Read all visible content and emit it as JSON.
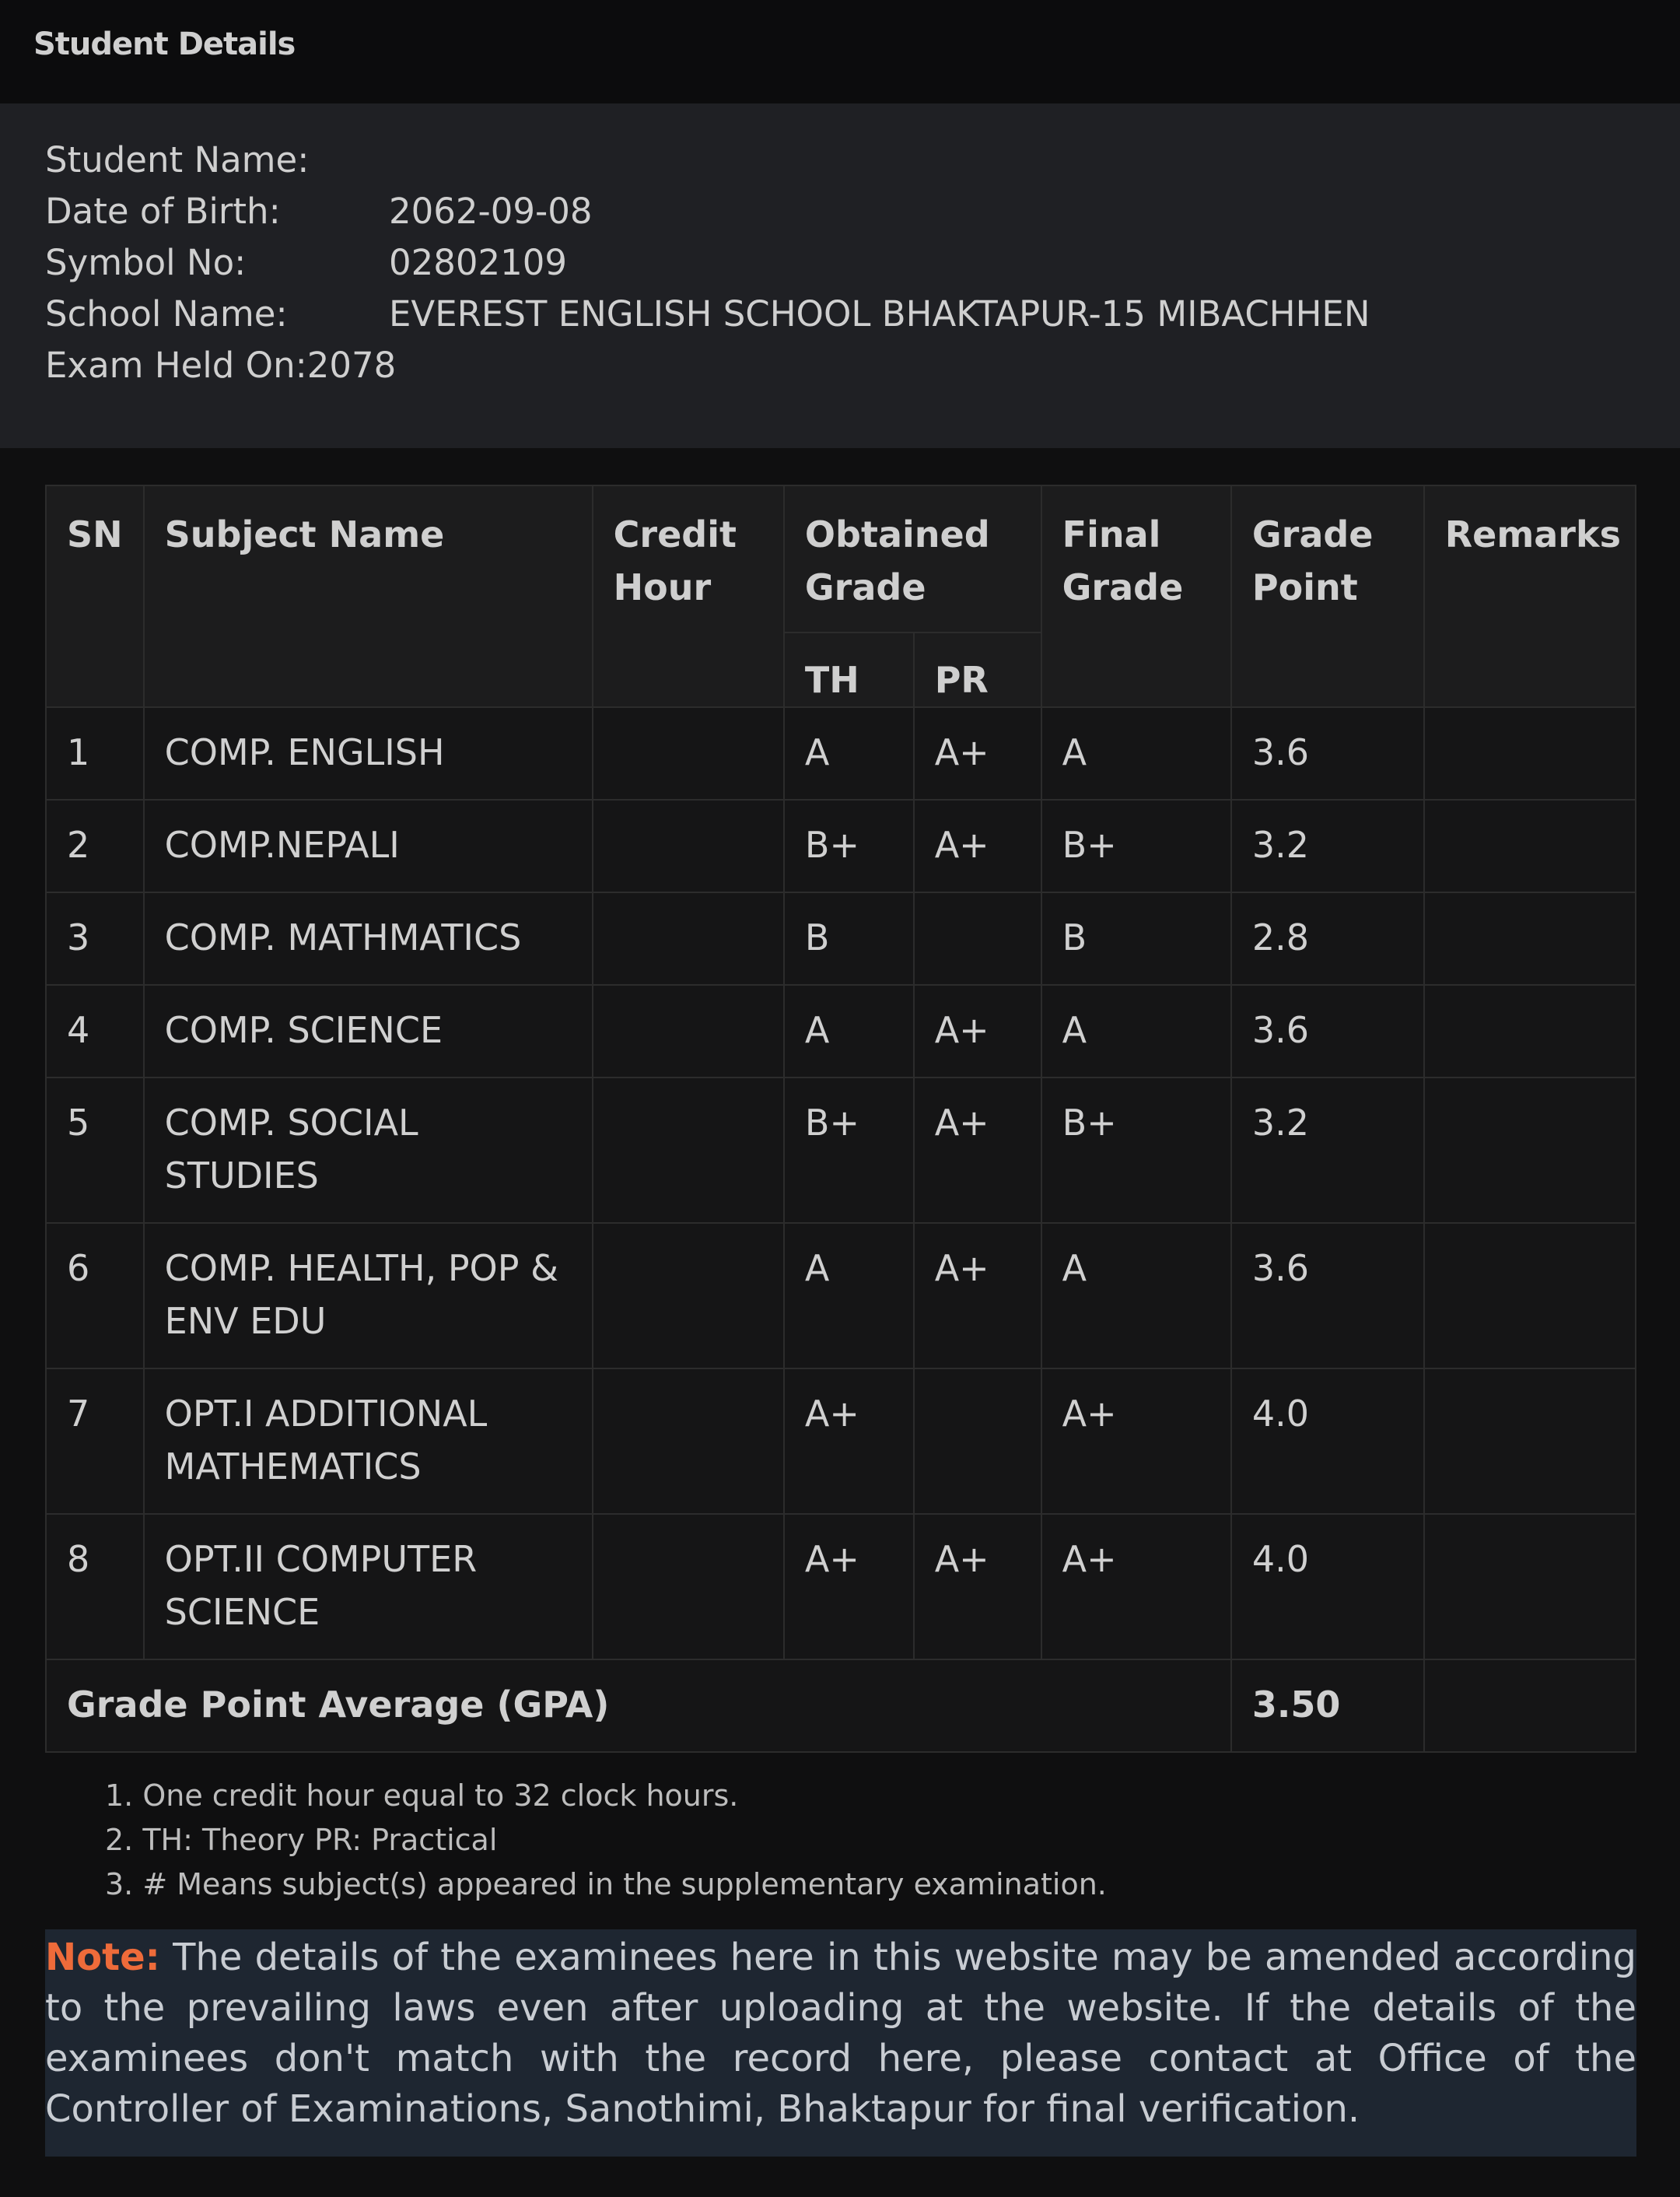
{
  "header": {
    "title": "Student Details"
  },
  "details": [
    {
      "label": "Student Name:",
      "value": ""
    },
    {
      "label": "Date of Birth:",
      "value": "2062-09-08"
    },
    {
      "label": "Symbol No:",
      "value": "02802109"
    },
    {
      "label": "School Name:",
      "value": "EVEREST ENGLISH SCHOOL BHAKTAPUR-15 MIBACHHEN"
    },
    {
      "label": "Exam Held On:2078",
      "value": ""
    }
  ],
  "table": {
    "headers": {
      "sn": "SN",
      "subject": "Subject Name",
      "credit": "Credit Hour",
      "obtained": "Obtained Grade",
      "th": "TH",
      "pr": "PR",
      "final": "Final Grade",
      "gp": "Grade Point",
      "remarks": "Remarks"
    },
    "rows": [
      {
        "sn": "1",
        "subject": "COMP. ENGLISH",
        "credit": "",
        "th": "A",
        "pr": "A+",
        "final": "A",
        "gp": "3.6",
        "remarks": ""
      },
      {
        "sn": "2",
        "subject": "COMP.NEPALI",
        "credit": "",
        "th": "B+",
        "pr": "A+",
        "final": "B+",
        "gp": "3.2",
        "remarks": ""
      },
      {
        "sn": "3",
        "subject": "COMP. MATHMATICS",
        "credit": "",
        "th": "B",
        "pr": "",
        "final": "B",
        "gp": "2.8",
        "remarks": ""
      },
      {
        "sn": "4",
        "subject": "COMP. SCIENCE",
        "credit": "",
        "th": "A",
        "pr": "A+",
        "final": "A",
        "gp": "3.6",
        "remarks": ""
      },
      {
        "sn": "5",
        "subject": "COMP. SOCIAL STUDIES",
        "credit": "",
        "th": "B+",
        "pr": "A+",
        "final": "B+",
        "gp": "3.2",
        "remarks": ""
      },
      {
        "sn": "6",
        "subject": "COMP. HEALTH, POP & ENV EDU",
        "credit": "",
        "th": "A",
        "pr": "A+",
        "final": "A",
        "gp": "3.6",
        "remarks": ""
      },
      {
        "sn": "7",
        "subject": "OPT.I ADDITIONAL MATHEMATICS",
        "credit": "",
        "th": "A+",
        "pr": "",
        "final": "A+",
        "gp": "4.0",
        "remarks": ""
      },
      {
        "sn": "8",
        "subject": "OPT.II COMPUTER SCIENCE",
        "credit": "",
        "th": "A+",
        "pr": "A+",
        "final": "A+",
        "gp": "4.0",
        "remarks": ""
      }
    ],
    "gpa": {
      "label": "Grade Point Average (GPA)",
      "value": "3.50",
      "remarks": ""
    }
  },
  "notes": [
    "1. One credit hour equal to 32 clock hours.",
    "2. TH: Theory PR: Practical",
    "3. # Means subject(s) appeared in the supplementary examination."
  ],
  "notice": {
    "label": "Note:",
    "text": " The details of the examinees here in this website may be amended according to the prevailing laws even after uploading at the website. If the details of the examinees don't match with the record here, please contact at Office of the Controller of Examinations, Sanothimi, Bhaktapur for final verification."
  },
  "colors": {
    "note_label": "#ee6b3a",
    "note_bg": "#1e2631",
    "details_bg": "#1f2024"
  }
}
